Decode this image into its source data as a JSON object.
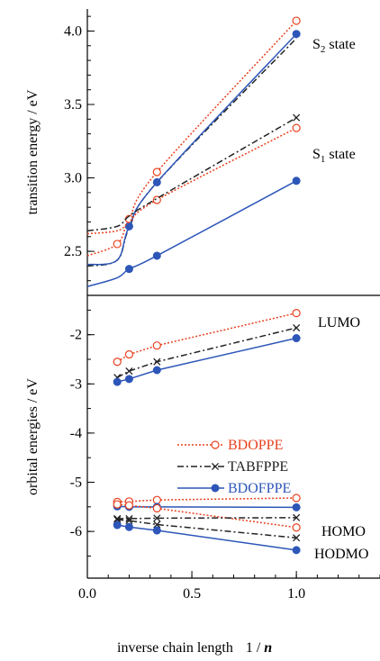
{
  "chart_data": [
    {
      "type": "line",
      "panel": "top",
      "ylabel": "transition energy / eV",
      "xlim": [
        0,
        1.4
      ],
      "ylim": [
        2.2,
        4.15
      ],
      "yticks": [
        "2.5",
        "3.0",
        "3.5",
        "4.0"
      ],
      "ytick_values": [
        2.5,
        3.0,
        3.5,
        4.0
      ],
      "annotations": [
        {
          "id": "s2",
          "main": "S",
          "sub": "2",
          "rest": " state",
          "x": 1.0,
          "y": 3.98
        },
        {
          "id": "s1",
          "main": "S",
          "sub": "1",
          "rest": " state",
          "x": 1.0,
          "y": 3.2
        }
      ],
      "series": [
        {
          "name": "BDOPPE",
          "state": "S2",
          "style": "bdoppe",
          "x": [
            0,
            0.143,
            0.2,
            0.333,
            1.0
          ],
          "y": [
            2.47,
            2.55,
            2.72,
            3.04,
            4.07
          ],
          "markers": [
            0.143,
            0.2,
            0.333,
            1.0
          ],
          "smooth": true
        },
        {
          "name": "TABFPPE",
          "state": "S2",
          "style": "tabfppe",
          "x": [
            0,
            0.143,
            0.2,
            0.333,
            1.0
          ],
          "y": [
            2.4,
            2.44,
            2.66,
            2.97,
            3.95
          ],
          "markers": [],
          "smooth": true
        },
        {
          "name": "BDOFPPE",
          "state": "S2",
          "style": "bdofppe",
          "x": [
            0,
            0.143,
            0.2,
            0.333,
            1.0
          ],
          "y": [
            2.41,
            2.44,
            2.67,
            2.97,
            3.98
          ],
          "markers": [
            0.2,
            0.333,
            1.0
          ],
          "smooth": true
        },
        {
          "name": "BDOPPE",
          "state": "S1",
          "style": "bdoppe",
          "x": [
            0,
            0.143,
            0.2,
            0.333,
            1.0
          ],
          "y": [
            2.62,
            2.64,
            2.7,
            2.85,
            3.34
          ],
          "markers": [
            0.333,
            1.0
          ],
          "smooth": true
        },
        {
          "name": "TABFPPE",
          "state": "S1",
          "style": "tabfppe",
          "x": [
            0,
            0.143,
            0.2,
            0.333,
            1.0
          ],
          "y": [
            2.64,
            2.67,
            2.74,
            2.86,
            3.41
          ],
          "markers": [
            1.0
          ],
          "smooth": true
        },
        {
          "name": "BDOFPPE",
          "state": "S1",
          "style": "bdofppe",
          "x": [
            0,
            0.143,
            0.2,
            0.333,
            1.0
          ],
          "y": [
            2.26,
            2.32,
            2.38,
            2.47,
            2.98
          ],
          "markers": [
            0.2,
            0.333,
            1.0
          ],
          "smooth": true
        }
      ]
    },
    {
      "type": "line",
      "panel": "bottom",
      "ylabel": "orbital energies / eV",
      "xlabel_main": "inverse chain length",
      "xlabel_unit": "1 / ",
      "xlabel_var": "n",
      "xlim": [
        0,
        1.4
      ],
      "ylim": [
        -6.95,
        -1.2
      ],
      "xticks": [
        "0.0",
        "0.5",
        "1.0"
      ],
      "xtick_values": [
        0.0,
        0.5,
        1.0
      ],
      "yticks": [
        "-2",
        "-3",
        "-4",
        "-5",
        "-6"
      ],
      "ytick_values": [
        -2,
        -3,
        -4,
        -5,
        -6
      ],
      "annotations": [
        {
          "id": "lumo",
          "text": "LUMO",
          "x": 1.06,
          "y": -1.8
        },
        {
          "id": "homo",
          "text": "HOMO",
          "x": 1.06,
          "y": -5.45
        },
        {
          "id": "hodmo",
          "text": "HODMO",
          "x": 1.06,
          "y": -6.02
        }
      ],
      "legend": {
        "position": "center-left",
        "entries": [
          {
            "label": "BDOPPE",
            "style": "bdoppe"
          },
          {
            "label": "TABFPPE",
            "style": "tabfppe"
          },
          {
            "label": "BDOFPPE",
            "style": "bdofppe"
          }
        ]
      },
      "series": [
        {
          "name": "BDOPPE",
          "level": "LUMO",
          "style": "bdoppe",
          "x": [
            0.143,
            0.2,
            0.333,
            1.0
          ],
          "y": [
            -2.55,
            -2.4,
            -2.22,
            -1.56
          ]
        },
        {
          "name": "TABFPPE",
          "level": "LUMO",
          "style": "tabfppe",
          "x": [
            0.143,
            0.2,
            0.333,
            1.0
          ],
          "y": [
            -2.87,
            -2.74,
            -2.55,
            -1.86
          ]
        },
        {
          "name": "BDOFPPE",
          "level": "LUMO",
          "style": "bdofppe",
          "x": [
            0.143,
            0.2,
            0.333,
            1.0
          ],
          "y": [
            -2.96,
            -2.9,
            -2.72,
            -2.07
          ]
        },
        {
          "name": "BDOPPE",
          "level": "HOMO",
          "style": "bdoppe",
          "x": [
            0.143,
            0.2,
            0.333,
            1.0
          ],
          "y": [
            -5.4,
            -5.39,
            -5.36,
            -5.32
          ]
        },
        {
          "name": "BDOFPPE",
          "level": "HOMO",
          "style": "bdofppe",
          "x": [
            0.143,
            0.2,
            0.333,
            1.0
          ],
          "y": [
            -5.49,
            -5.5,
            -5.5,
            -5.51
          ]
        },
        {
          "name": "BDOPPE",
          "level": "HODMO",
          "style": "bdoppe",
          "x": [
            0.143,
            0.2,
            0.333,
            1.0
          ],
          "y": [
            -5.45,
            -5.47,
            -5.53,
            -5.92
          ]
        },
        {
          "name": "TABFPPE",
          "level": "HOMO",
          "style": "tabfppe",
          "x": [
            0.143,
            0.2,
            0.333,
            1.0
          ],
          "y": [
            -5.74,
            -5.74,
            -5.73,
            -5.72
          ]
        },
        {
          "name": "TABFPPE",
          "level": "HODMO",
          "style": "tabfppe",
          "x": [
            0.143,
            0.2,
            0.333,
            1.0
          ],
          "y": [
            -5.76,
            -5.78,
            -5.86,
            -6.13
          ]
        },
        {
          "name": "BDOFPPE",
          "level": "HODMO",
          "style": "bdofppe",
          "x": [
            0.143,
            0.2,
            0.333,
            1.0
          ],
          "y": [
            -5.87,
            -5.91,
            -5.98,
            -6.38
          ]
        }
      ]
    }
  ],
  "styles": {
    "bdoppe": {
      "color": "#e8411e",
      "dash": "2,2",
      "marker": "open-circle"
    },
    "tabfppe": {
      "color": "#222222",
      "dash": "7,3,2,3",
      "marker": "cross"
    },
    "bdofppe": {
      "color": "#2d56b8",
      "dash": "",
      "marker": "filled-circle"
    }
  }
}
